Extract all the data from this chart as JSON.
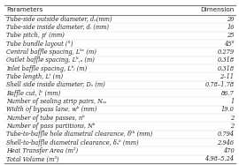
{
  "headers": [
    "Parameters",
    "Dimension"
  ],
  "rows": [
    [
      "Tube-side outside diameter, dₒ(mm)",
      "20"
    ],
    [
      "Tube-side inside diameter, dᵢ (mm)",
      "16"
    ],
    [
      "Tube pitch, pᵗ (mm)",
      "25"
    ],
    [
      "Tube bundle layout (°)",
      "45°"
    ],
    [
      "Central baffle spacing, Lᵇᶜ (m)",
      "0.279"
    ],
    [
      "Outlet baffle spacing, Lᵇ,ₒ (m)",
      "0.318"
    ],
    [
      "Inlet baffle spacing, Lᵇᵢ (m)",
      "0.318"
    ],
    [
      "Tube length, Lᵗ (m)",
      "2–11"
    ],
    [
      "Shell side inside diameter, Dₛ (m)",
      "0.78–1.78"
    ],
    [
      "Baffle cut, lᶜ (mm)",
      "86.7"
    ],
    [
      "Number of sealing strip pairs, Nₛₛ",
      "1"
    ],
    [
      "Width of bypass lane, wᵇ (mm)",
      "19.0"
    ],
    [
      "Number of tube passes, nᵇ",
      "2"
    ],
    [
      "Number of pass partitions, Nᵇ",
      "2"
    ],
    [
      "Tube-to-baffle hole diametral clearance, δᵗᵇ (mm)",
      "0.794"
    ],
    [
      "Shell-to-baffle diametral clearance, δₛᵇ (mm)",
      "2.946"
    ],
    [
      "Heat Transfer Area (m²)",
      "470"
    ],
    [
      "Total Volume (m³)",
      "4.98–5.24"
    ]
  ],
  "text_color": "#222222",
  "border_color": "#777777",
  "line_color": "#aaaaaa",
  "font_size": 4.8,
  "header_font_size": 5.2,
  "fig_width": 2.7,
  "fig_height": 1.87,
  "dpi": 100
}
